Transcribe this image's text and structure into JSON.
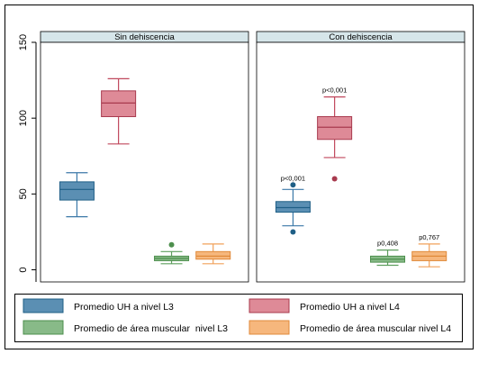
{
  "chart_data": {
    "type": "boxplot",
    "y_ticks": [
      0,
      50,
      100,
      150
    ],
    "ylim": [
      -8,
      150
    ],
    "grid": false,
    "legend_placement": "bottom",
    "panels": [
      {
        "title": "Sin dehiscencia",
        "boxes": [
          {
            "series": "Promedio UH a nivel L3",
            "whisker_low": 35,
            "q1": 46,
            "median": 53,
            "q3": 58,
            "whisker_high": 64,
            "outliers": [],
            "p_label": ""
          },
          {
            "series": "Promedio UH a nivel L4",
            "whisker_low": 83,
            "q1": 101,
            "median": 110,
            "q3": 118,
            "whisker_high": 126,
            "outliers": [],
            "p_label": ""
          },
          {
            "series": "Promedio de área muscular  nivel L3",
            "whisker_low": 4,
            "q1": 6,
            "median": 7.5,
            "q3": 9,
            "whisker_high": 12,
            "outliers": [
              16.5
            ],
            "p_label": ""
          },
          {
            "series": "Promedio de área muscular nivel L4",
            "whisker_low": 4,
            "q1": 7,
            "median": 9,
            "q3": 12,
            "whisker_high": 17,
            "outliers": [],
            "p_label": ""
          }
        ]
      },
      {
        "title": "Con dehiscencia",
        "boxes": [
          {
            "series": "Promedio UH a nivel L3",
            "whisker_low": 29,
            "q1": 38,
            "median": 41,
            "q3": 45,
            "whisker_high": 53,
            "outliers": [
              25,
              56
            ],
            "p_label": "p<0,001"
          },
          {
            "series": "Promedio UH a nivel L4",
            "whisker_low": 74,
            "q1": 86,
            "median": 94,
            "q3": 101,
            "whisker_high": 114,
            "outliers": [
              60
            ],
            "p_label": "p<0,001"
          },
          {
            "series": "Promedio de área muscular  nivel L3",
            "whisker_low": 3,
            "q1": 5,
            "median": 7,
            "q3": 9,
            "whisker_high": 13,
            "outliers": [],
            "p_label": "p0,408"
          },
          {
            "series": "Promedio de área muscular nivel L4",
            "whisker_low": 2,
            "q1": 6,
            "median": 9,
            "q3": 12,
            "whisker_high": 17,
            "outliers": [],
            "p_label": "p0,767"
          }
        ]
      }
    ],
    "series": [
      {
        "name": "Promedio UH a nivel L3",
        "fill": "#5b8fb3",
        "stroke": "#1f5f86",
        "whisker": "#3b78a8"
      },
      {
        "name": "Promedio UH a nivel L4",
        "fill": "#de8a97",
        "stroke": "#a83a4e",
        "whisker": "#c0485d"
      },
      {
        "name": "Promedio de área muscular  nivel L3",
        "fill": "#88ba88",
        "stroke": "#4d8f4d",
        "whisker": "#5f9f5f"
      },
      {
        "name": "Promedio de área muscular nivel L4",
        "fill": "#f6b77d",
        "stroke": "#e08a3a",
        "whisker": "#f0a05a"
      }
    ],
    "colors": {
      "panel_header": "#d6e6ea",
      "outer_border": "#000000",
      "axis": "#000000"
    }
  }
}
